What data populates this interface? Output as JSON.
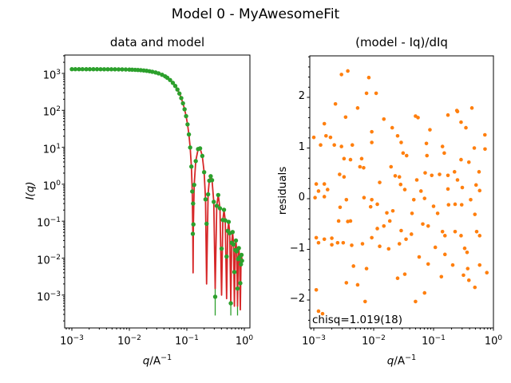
{
  "figure": {
    "title": "Model 0 - MyAwesomeFit"
  },
  "colors": {
    "data_green": "#2ca02c",
    "model_red": "#d62728",
    "residual_orange": "#ff7f0e",
    "text_black": "#000000",
    "background": "#ffffff"
  },
  "left_plot": {
    "title": "data and model",
    "xlabel": "q/A^-1",
    "ylabel": "I(q)",
    "x_tick_exponents": [
      -3,
      -2,
      -1,
      0
    ],
    "y_tick_exponents": [
      3,
      2,
      1,
      0,
      -1,
      -2,
      -3
    ]
  },
  "right_plot": {
    "title": "(model - Iq)/dIq",
    "xlabel": "q/A^-1",
    "ylabel": "residuals",
    "x_tick_exponents": [
      -3,
      -2,
      -1,
      0
    ],
    "y_ticks": [
      2,
      1,
      0,
      -1,
      -2
    ],
    "annotation": "chisq=1.019(18)"
  },
  "chart_data": [
    {
      "type": "line",
      "name": "model curve (red)",
      "axes": "left",
      "xscale": "log",
      "yscale": "log",
      "xlim_log": [
        -3.125,
        0.1
      ],
      "ylim_log": [
        -3.88,
        3.5
      ],
      "q": [
        0.001,
        0.00115,
        0.00133,
        0.00153,
        0.00178,
        0.00205,
        0.00237,
        0.00274,
        0.00316,
        0.00365,
        0.00422,
        0.00487,
        0.00562,
        0.0065,
        0.0075,
        0.00866,
        0.01,
        0.0112,
        0.0126,
        0.0141,
        0.0158,
        0.0178,
        0.02,
        0.0224,
        0.0251,
        0.0286,
        0.0322,
        0.0371,
        0.0419,
        0.0457,
        0.0511,
        0.0571,
        0.0629,
        0.0686,
        0.0743,
        0.08,
        0.0857,
        0.0914,
        0.0971,
        0.1029,
        0.1086,
        0.1143,
        0.12,
        0.1243,
        0.1271,
        0.1284,
        0.13,
        0.1343,
        0.1429,
        0.1571,
        0.17,
        0.1857,
        0.2,
        0.2114,
        0.2207,
        0.2343,
        0.2457,
        0.26,
        0.2743,
        0.2943,
        0.3114,
        0.3314,
        0.3514,
        0.3771,
        0.402,
        0.4229,
        0.4429,
        0.4657,
        0.492,
        0.5143,
        0.5343,
        0.5571,
        0.582,
        0.6029,
        0.6257,
        0.6486,
        0.672,
        0.6943,
        0.7143,
        0.7371,
        0.762,
        0.7829,
        0.8029,
        0.8257,
        0.8517,
        0.8743,
        0.8943,
        0.9114
      ],
      "I": [
        1300,
        1300,
        1300,
        1300,
        1299,
        1299,
        1298,
        1298,
        1297,
        1296,
        1294,
        1292,
        1290,
        1287,
        1282,
        1276,
        1268,
        1260,
        1250,
        1237,
        1222,
        1201,
        1176,
        1145,
        1107,
        1061,
        1004,
        919,
        834,
        763,
        663,
        554,
        457,
        366,
        285,
        215,
        155,
        107,
        69.6,
        41.7,
        22.3,
        9.86,
        3.01,
        0.637,
        0.0455,
        0.004,
        0.082,
        0.962,
        4.23,
        8.96,
        9.34,
        5.84,
        2.12,
        0.39,
        0.002,
        0.533,
        1.25,
        1.65,
        1.29,
        0.333,
        0.0015,
        0.26,
        0.511,
        0.223,
        0.001,
        0.108,
        0.203,
        0.105,
        0.0008,
        0.0546,
        0.0957,
        0.0473,
        0.0006,
        0.026,
        0.0508,
        0.0235,
        0.0005,
        0.0166,
        0.0299,
        0.0153,
        0.0005,
        0.0094,
        0.0187,
        0.0105,
        0.0004,
        0.0068,
        0.0122,
        0.0085
      ]
    },
    {
      "type": "scatter",
      "name": "measured data (green, with error bars)",
      "axes": "left",
      "q": [
        0.001,
        0.00115,
        0.00133,
        0.00153,
        0.00178,
        0.00205,
        0.00237,
        0.00274,
        0.00316,
        0.00365,
        0.00422,
        0.00487,
        0.00562,
        0.0065,
        0.0075,
        0.00866,
        0.01,
        0.0112,
        0.0126,
        0.0141,
        0.0158,
        0.0178,
        0.02,
        0.0224,
        0.0251,
        0.0286,
        0.0322,
        0.0371,
        0.0419,
        0.0457,
        0.0511,
        0.0571,
        0.0629,
        0.0686,
        0.0743,
        0.08,
        0.0857,
        0.0914,
        0.0971,
        0.1029,
        0.1086,
        0.1143,
        0.12,
        0.1243,
        0.1271,
        0.1284,
        0.13,
        0.1343,
        0.1429,
        0.1571,
        0.17,
        0.1857,
        0.2,
        0.2114,
        0.2207,
        0.2343,
        0.2457,
        0.26,
        0.2743,
        0.2943,
        0.3114,
        0.3314,
        0.3514,
        0.3771,
        0.402,
        0.4229,
        0.4429,
        0.4657,
        0.492,
        0.5143,
        0.5343,
        0.5571,
        0.582,
        0.6029,
        0.6257,
        0.6486,
        0.672,
        0.6943,
        0.7143,
        0.7371,
        0.762,
        0.7829,
        0.8029,
        0.8257,
        0.8517,
        0.8743,
        0.8943,
        0.9114
      ],
      "I": [
        1300,
        1300,
        1300,
        1300,
        1299,
        1299,
        1298,
        1298,
        1297,
        1296,
        1294,
        1292,
        1290,
        1287,
        1282,
        1276,
        1268,
        1260,
        1250,
        1237,
        1222,
        1201,
        1176,
        1145,
        1107,
        1061,
        1004,
        919,
        834,
        763,
        663,
        554,
        457,
        366,
        285,
        215,
        155,
        107,
        69.6,
        41.7,
        22.3,
        9.86,
        3.01,
        0.637,
        0.0455,
        0.3,
        0.082,
        0.962,
        4.23,
        8.96,
        9.34,
        5.84,
        2.12,
        0.39,
        0.085,
        0.533,
        1.25,
        1.65,
        1.29,
        0.333,
        0.0009,
        0.26,
        0.511,
        0.223,
        0.018,
        0.108,
        0.203,
        0.105,
        0.011,
        0.0546,
        0.0957,
        0.0473,
        0.0006,
        0.026,
        0.0508,
        0.0235,
        0.0042,
        0.0166,
        0.0299,
        0.0153,
        0.0015,
        0.0094,
        0.0187,
        0.0105,
        0.0021,
        0.0068,
        0.0122,
        0.0085
      ]
    },
    {
      "type": "scatter",
      "name": "normalized residuals (orange)",
      "axes": "right",
      "xscale": "log",
      "yscale": "linear",
      "xlim_log": [
        -3.067,
        0.0
      ],
      "ylim": [
        -2.55,
        2.82
      ],
      "points": [
        [
          0.0037,
          2.52
        ],
        [
          0.0029,
          2.45
        ],
        [
          0.0083,
          2.39
        ],
        [
          0.0076,
          2.08
        ],
        [
          0.011,
          2.08
        ],
        [
          0.0023,
          1.87
        ],
        [
          0.0054,
          1.79
        ],
        [
          0.0034,
          1.61
        ],
        [
          0.0148,
          1.57
        ],
        [
          0.0015,
          1.48
        ],
        [
          0.0204,
          1.4
        ],
        [
          0.0093,
          1.32
        ],
        [
          0.001,
          1.21
        ],
        [
          0.0016,
          1.24
        ],
        [
          0.0019,
          1.21
        ],
        [
          0.0251,
          1.24
        ],
        [
          0.0013,
          1.06
        ],
        [
          0.0022,
          1.06
        ],
        [
          0.0029,
          1.03
        ],
        [
          0.0044,
          1.06
        ],
        [
          0.0093,
          1.11
        ],
        [
          0.0288,
          1.11
        ],
        [
          0.0032,
          0.79
        ],
        [
          0.0041,
          0.77
        ],
        [
          0.0063,
          0.79
        ],
        [
          0.0059,
          0.63
        ],
        [
          0.0068,
          0.61
        ],
        [
          0.0027,
          0.48
        ],
        [
          0.0032,
          0.43
        ],
        [
          0.0126,
          0.32
        ],
        [
          0.0229,
          0.45
        ],
        [
          0.0269,
          0.43
        ],
        [
          0.0011,
          0.29
        ],
        [
          0.0015,
          0.29
        ],
        [
          0.0282,
          0.28
        ],
        [
          0.437,
          1.79
        ],
        [
          0.05,
          1.63
        ],
        [
          0.174,
          1.65
        ],
        [
          0.245,
          1.74
        ],
        [
          0.288,
          1.51
        ],
        [
          0.347,
          1.4
        ],
        [
          0.087,
          1.36
        ],
        [
          0.076,
          1.09
        ],
        [
          0.141,
          1.03
        ],
        [
          0.479,
          1.0
        ],
        [
          0.0195,
          0.63
        ],
        [
          0.031,
          0.9
        ],
        [
          0.0355,
          0.85
        ],
        [
          0.0776,
          0.85
        ],
        [
          0.151,
          0.9
        ],
        [
          0.288,
          0.77
        ],
        [
          0.389,
          0.72
        ],
        [
          0.724,
          0.98
        ],
        [
          0.575,
          0.53
        ],
        [
          0.224,
          0.53
        ],
        [
          0.0724,
          0.51
        ],
        [
          0.0933,
          0.46
        ],
        [
          0.126,
          0.48
        ],
        [
          0.174,
          0.46
        ],
        [
          0.0525,
          0.37
        ],
        [
          0.251,
          0.37
        ],
        [
          0.513,
          0.27
        ],
        [
          0.174,
          0.19
        ],
        [
          0.302,
          0.22
        ],
        [
          0.055,
          1.6
        ],
        [
          0.251,
          1.72
        ],
        [
          0.72,
          1.26
        ],
        [
          0.0012,
          0.15
        ],
        [
          0.0017,
          0.18
        ],
        [
          0.00105,
          0.02
        ],
        [
          0.0015,
          0.04
        ],
        [
          0.0035,
          -0.02
        ],
        [
          0.0069,
          0.02
        ],
        [
          0.0093,
          -0.02
        ],
        [
          0.00275,
          -0.17
        ],
        [
          0.0089,
          -0.16
        ],
        [
          0.0115,
          -0.11
        ],
        [
          0.0166,
          -0.28
        ],
        [
          0.0209,
          -0.24
        ],
        [
          0.0026,
          -0.44
        ],
        [
          0.0037,
          -0.45
        ],
        [
          0.0041,
          -0.44
        ],
        [
          0.0115,
          -0.59
        ],
        [
          0.0148,
          -0.54
        ],
        [
          0.0186,
          -0.44
        ],
        [
          0.0011,
          -0.77
        ],
        [
          0.0015,
          -0.8
        ],
        [
          0.002,
          -0.78
        ],
        [
          0.0012,
          -0.87
        ],
        [
          0.002,
          -0.91
        ],
        [
          0.0025,
          -0.87
        ],
        [
          0.0031,
          -0.87
        ],
        [
          0.0043,
          -0.92
        ],
        [
          0.0065,
          -0.89
        ],
        [
          0.0093,
          -0.77
        ],
        [
          0.0126,
          -0.94
        ],
        [
          0.0178,
          -0.99
        ],
        [
          0.0269,
          -0.89
        ],
        [
          0.0046,
          -1.33
        ],
        [
          0.0076,
          -1.38
        ],
        [
          0.0035,
          -1.66
        ],
        [
          0.0054,
          -1.7
        ],
        [
          0.0011,
          -1.8
        ],
        [
          0.0072,
          -2.03
        ],
        [
          0.0012,
          -2.22
        ],
        [
          0.0014,
          -2.27
        ],
        [
          0.0251,
          -1.57
        ],
        [
          0.0331,
          0.18
        ],
        [
          0.0617,
          0.15
        ],
        [
          0.589,
          0.16
        ],
        [
          0.0468,
          -0.02
        ],
        [
          0.0708,
          0.005
        ],
        [
          0.178,
          -0.12
        ],
        [
          0.229,
          -0.11
        ],
        [
          0.295,
          -0.12
        ],
        [
          0.417,
          -0.02
        ],
        [
          0.1,
          -0.15
        ],
        [
          0.117,
          -0.29
        ],
        [
          0.0437,
          -0.29
        ],
        [
          0.49,
          -0.31
        ],
        [
          0.0661,
          -0.5
        ],
        [
          0.0813,
          -0.54
        ],
        [
          0.0288,
          -0.63
        ],
        [
          0.0427,
          -0.7
        ],
        [
          0.0347,
          -0.8
        ],
        [
          0.141,
          -0.65
        ],
        [
          0.155,
          -0.73
        ],
        [
          0.229,
          -0.65
        ],
        [
          0.288,
          -0.73
        ],
        [
          0.525,
          -0.65
        ],
        [
          0.589,
          -0.73
        ],
        [
          0.107,
          -0.96
        ],
        [
          0.155,
          -1.1
        ],
        [
          0.331,
          -0.98
        ],
        [
          0.363,
          -1.06
        ],
        [
          0.0575,
          -1.15
        ],
        [
          0.0813,
          -1.29
        ],
        [
          0.209,
          -1.31
        ],
        [
          0.372,
          -1.38
        ],
        [
          0.589,
          -1.31
        ],
        [
          0.0331,
          -1.49
        ],
        [
          0.135,
          -1.54
        ],
        [
          0.316,
          -1.51
        ],
        [
          0.389,
          -1.61
        ],
        [
          0.49,
          -1.75
        ],
        [
          0.0708,
          -1.86
        ],
        [
          0.05,
          -2.03
        ],
        [
          0.776,
          -1.46
        ]
      ]
    }
  ]
}
